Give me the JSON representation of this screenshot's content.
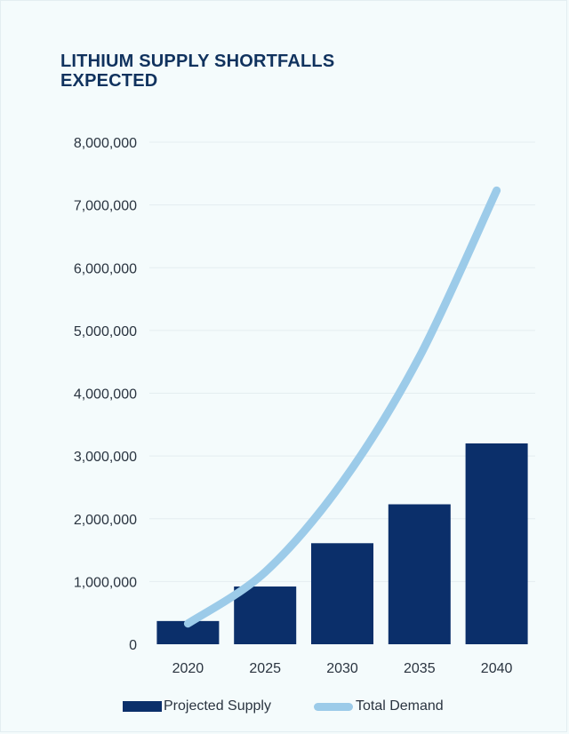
{
  "chart_data": {
    "type": "bar",
    "title": "LITHIUM SUPPLY SHORTFALLS EXPECTED",
    "categories": [
      "2020",
      "2025",
      "2030",
      "2035",
      "2040"
    ],
    "ylim": [
      0,
      8000000
    ],
    "yticks": [
      0,
      1000000,
      2000000,
      3000000,
      4000000,
      5000000,
      6000000,
      7000000,
      8000000
    ],
    "ytick_labels": [
      "0",
      "1,000,000",
      "2,000,000",
      "3,000,000",
      "4,000,000",
      "5,000,000",
      "6,000,000",
      "7,000,000",
      "8,000,000"
    ],
    "grid": true,
    "legend_position": "bottom",
    "series": [
      {
        "name": "Projected Supply",
        "kind": "bar",
        "color": "#0b2f6a",
        "values": [
          370000,
          920000,
          1610000,
          2230000,
          3200000
        ]
      },
      {
        "name": "Total Demand",
        "kind": "line",
        "color": "#9ccbe9",
        "values": [
          330000,
          1150000,
          2580000,
          4580000,
          7230000
        ]
      }
    ]
  }
}
